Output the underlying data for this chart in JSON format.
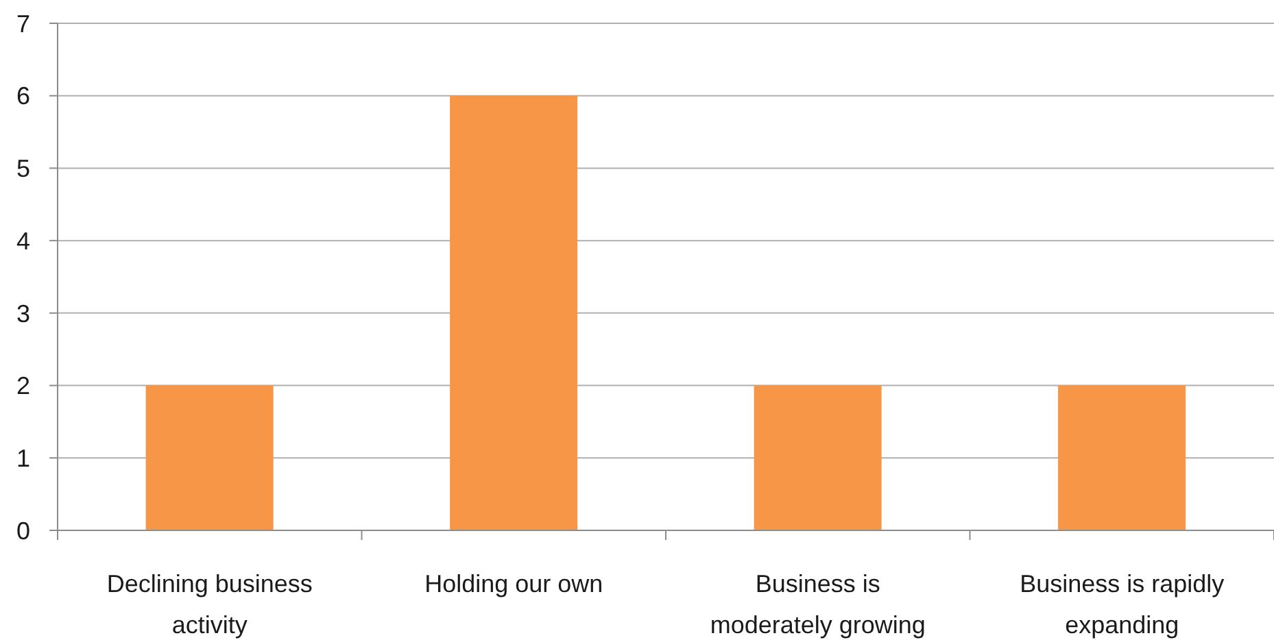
{
  "chart_data": {
    "type": "bar",
    "categories": [
      "Declining business activity",
      "Holding our own",
      "Business is moderately growing",
      "Business is rapidly expanding"
    ],
    "values": [
      2,
      6,
      2,
      2
    ],
    "color": "#f79646",
    "ylim": [
      0,
      7
    ],
    "yticks": [
      0,
      1,
      2,
      3,
      4,
      5,
      6,
      7
    ],
    "grid": "y"
  }
}
